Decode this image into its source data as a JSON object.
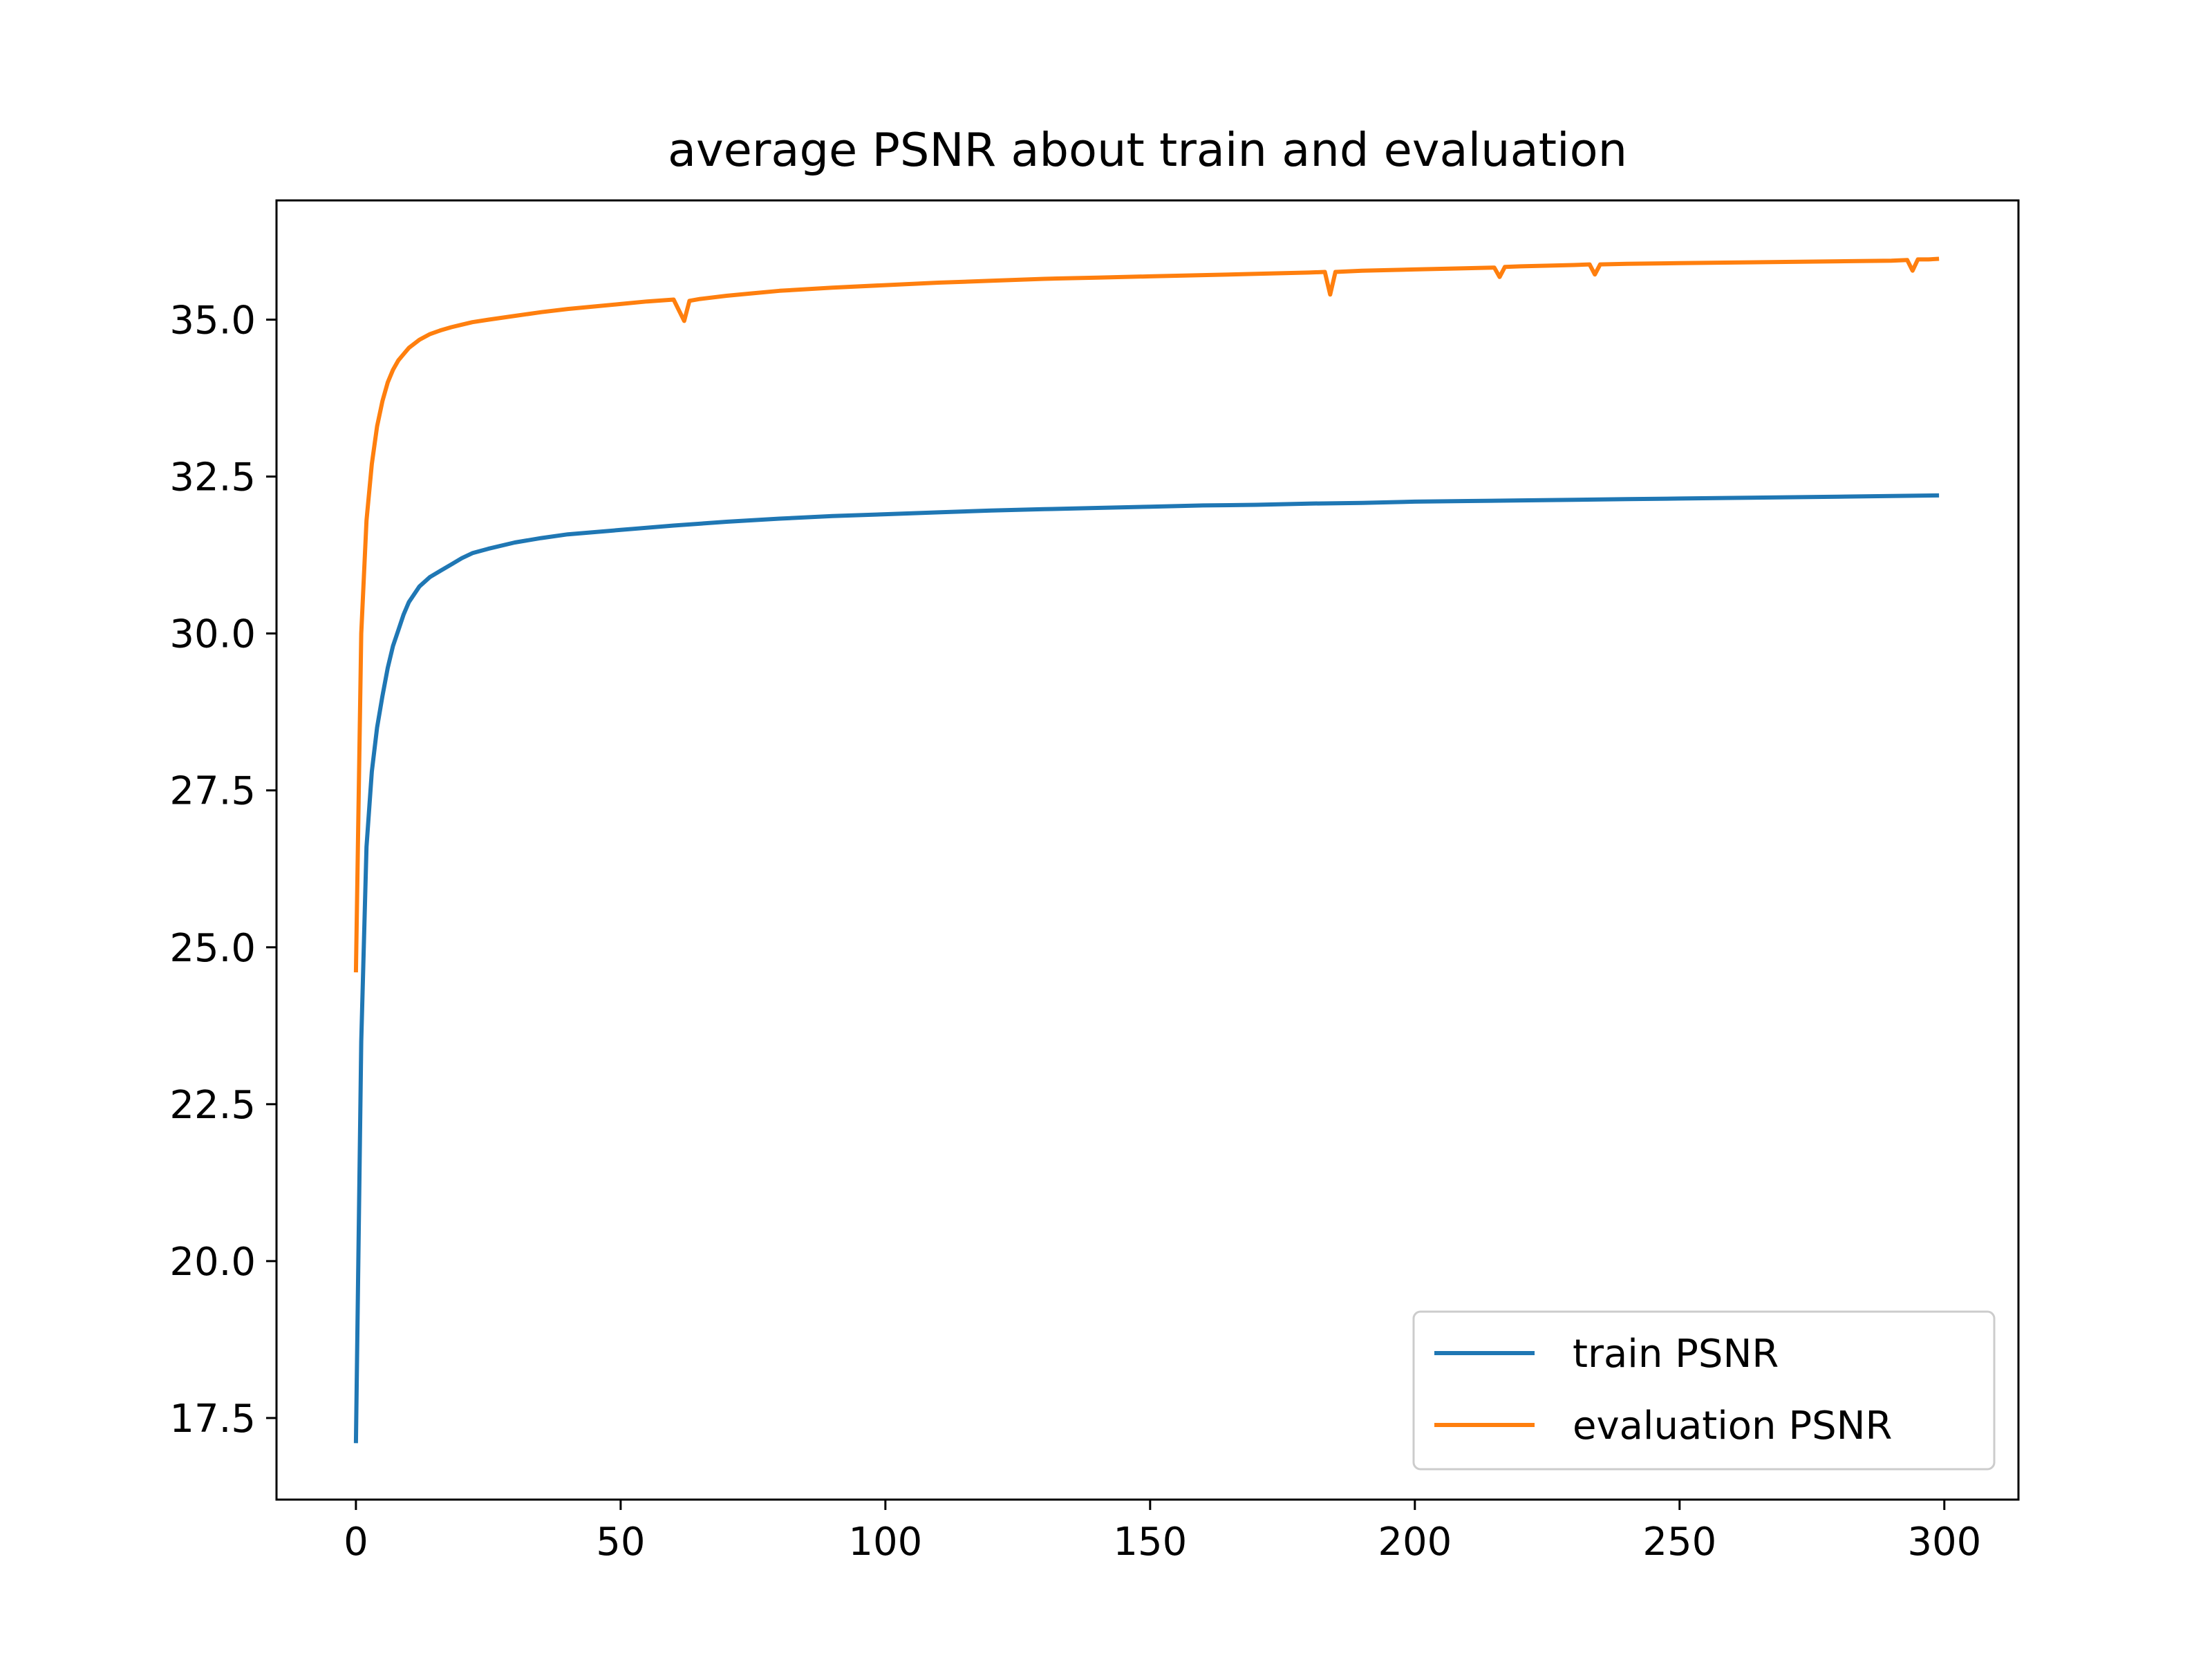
{
  "chart_data": {
    "type": "line",
    "title": "average PSNR about train and evaluation",
    "xlabel": "",
    "ylabel": "",
    "xlim": [
      -15,
      314
    ],
    "ylim": [
      16.2,
      36.9
    ],
    "xticks": [
      0,
      50,
      100,
      150,
      200,
      250,
      300
    ],
    "xtick_labels": [
      "0",
      "50",
      "100",
      "150",
      "200",
      "250",
      "300"
    ],
    "yticks": [
      17.5,
      20.0,
      22.5,
      25.0,
      27.5,
      30.0,
      32.5,
      35.0
    ],
    "ytick_labels": [
      "17.5",
      "20.0",
      "22.5",
      "25.0",
      "27.5",
      "30.0",
      "32.5",
      "35.0"
    ],
    "grid": false,
    "legend_position": "lower-right",
    "series": [
      {
        "name": "train PSNR",
        "color": "#1f77b4",
        "x": [
          0,
          1,
          2,
          3,
          4,
          5,
          6,
          7,
          8,
          9,
          10,
          12,
          14,
          16,
          18,
          20,
          22,
          25,
          30,
          35,
          40,
          50,
          60,
          70,
          80,
          90,
          100,
          110,
          120,
          130,
          140,
          150,
          160,
          170,
          180,
          190,
          200,
          210,
          220,
          230,
          240,
          250,
          260,
          270,
          280,
          290,
          299
        ],
        "values": [
          17.1,
          23.5,
          26.6,
          27.8,
          28.5,
          29.0,
          29.45,
          29.8,
          30.05,
          30.3,
          30.5,
          30.75,
          30.9,
          31.0,
          31.1,
          31.2,
          31.28,
          31.35,
          31.45,
          31.52,
          31.58,
          31.65,
          31.72,
          31.78,
          31.83,
          31.87,
          31.9,
          31.93,
          31.96,
          31.98,
          32.0,
          32.02,
          32.04,
          32.05,
          32.07,
          32.08,
          32.1,
          32.11,
          32.12,
          32.13,
          32.14,
          32.15,
          32.16,
          32.17,
          32.18,
          32.19,
          32.2
        ]
      },
      {
        "name": "evaluation PSNR",
        "color": "#ff7f0e",
        "x": [
          0,
          1,
          2,
          3,
          4,
          5,
          6,
          7,
          8,
          9,
          10,
          12,
          14,
          16,
          18,
          20,
          22,
          25,
          30,
          35,
          40,
          45,
          50,
          55,
          60,
          61,
          62,
          63,
          65,
          70,
          75,
          80,
          90,
          100,
          110,
          120,
          130,
          140,
          150,
          160,
          170,
          180,
          183,
          184,
          185,
          190,
          200,
          210,
          215,
          216,
          217,
          220,
          230,
          233,
          234,
          235,
          240,
          250,
          260,
          270,
          280,
          290,
          293,
          294,
          295,
          297,
          299
        ],
        "values": [
          24.6,
          30.0,
          31.8,
          32.7,
          33.3,
          33.7,
          34.0,
          34.2,
          34.35,
          34.45,
          34.55,
          34.68,
          34.77,
          34.83,
          34.88,
          34.92,
          34.96,
          35.0,
          35.06,
          35.12,
          35.17,
          35.21,
          35.25,
          35.29,
          35.32,
          35.15,
          34.98,
          35.3,
          35.33,
          35.38,
          35.42,
          35.46,
          35.51,
          35.55,
          35.59,
          35.62,
          35.65,
          35.67,
          35.69,
          35.71,
          35.73,
          35.75,
          35.76,
          35.4,
          35.76,
          35.78,
          35.8,
          35.82,
          35.83,
          35.68,
          35.84,
          35.85,
          35.87,
          35.88,
          35.72,
          35.88,
          35.89,
          35.9,
          35.91,
          35.92,
          35.93,
          35.94,
          35.95,
          35.78,
          35.96,
          35.96,
          35.97
        ]
      }
    ]
  }
}
